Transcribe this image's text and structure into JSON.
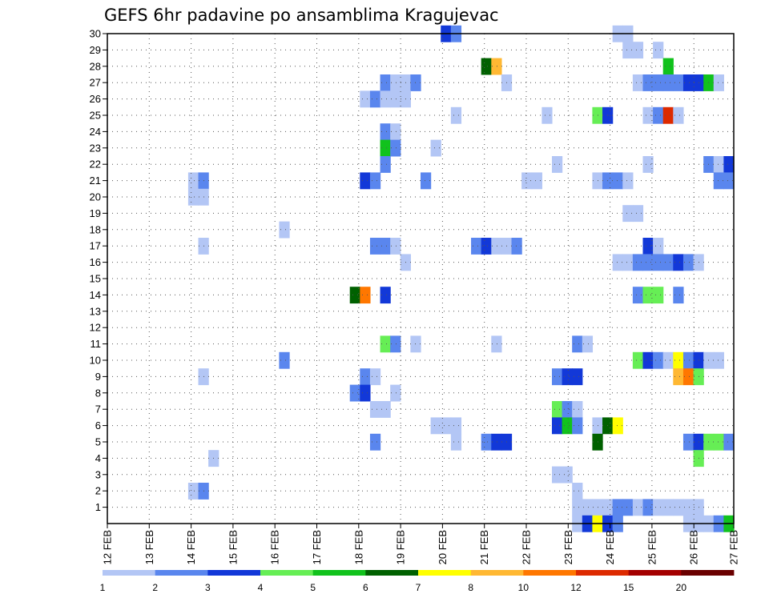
{
  "chart_data": {
    "type": "heatmap",
    "title": "GEFS 6hr padavine po ansamblima Kragujevac",
    "xlabel": "",
    "ylabel": "",
    "x_start_day": 12,
    "steps_per_day": 4,
    "x_steps": 62,
    "x_tick_labels": [
      "12 FEB",
      "13 FEB",
      "14 FEB",
      "15 FEB",
      "16 FEB",
      "17 FEB",
      "18 FEB",
      "19 FEB",
      "20 FEB",
      "21 FEB",
      "22 FEB",
      "23 FEB",
      "24 FEB",
      "25 FEB",
      "26 FEB",
      "27 FEB"
    ],
    "y_tick_labels": [
      "1",
      "2",
      "3",
      "4",
      "5",
      "6",
      "7",
      "8",
      "9",
      "10",
      "11",
      "12",
      "13",
      "14",
      "15",
      "16",
      "17",
      "18",
      "19",
      "20",
      "21",
      "22",
      "23",
      "24",
      "25",
      "26",
      "27",
      "28",
      "29",
      "30"
    ],
    "ylim": [
      0,
      30
    ],
    "grid": true,
    "legend": {
      "position": "bottom",
      "labels": [
        "1",
        "2",
        "3",
        "4",
        "5",
        "6",
        "7",
        "8",
        "10",
        "12",
        "15",
        "20"
      ],
      "colors": [
        "#b3c6f5",
        "#5a86ee",
        "#1238d8",
        "#66ee55",
        "#11c21c",
        "#006100",
        "#ffff00",
        "#ffb833",
        "#ff7700",
        "#dd2a00",
        "#a40000",
        "#6a0000"
      ]
    },
    "cell_colors": {
      "a": "#b3c6f5",
      "b": "#5a86ee",
      "c": "#1238d8",
      "d": "#66ee55",
      "e": "#11c21c",
      "f": "#006100",
      "g": "#ffff00",
      "h": "#ffb833",
      "i": "#ff7700",
      "j": "#dd2a00"
    },
    "cell_values": {
      "a": 1.5,
      "b": 2.5,
      "c": 3.5,
      "d": 4.5,
      "e": 5.5,
      "f": 6.5,
      "g": 7.5,
      "h": 9,
      "i": 11,
      "j": 13.5
    },
    "members": [
      {
        "m": 30,
        "cells": [
          [
            33,
            "c"
          ],
          [
            34,
            "b"
          ],
          [
            50,
            "a"
          ],
          [
            51,
            "a"
          ]
        ]
      },
      {
        "m": 29,
        "cells": [
          [
            51,
            "a"
          ],
          [
            52,
            "a"
          ],
          [
            54,
            "a"
          ]
        ]
      },
      {
        "m": 28,
        "cells": [
          [
            37,
            "f"
          ],
          [
            38,
            "h"
          ],
          [
            55,
            "e"
          ]
        ]
      },
      {
        "m": 27,
        "cells": [
          [
            27,
            "b"
          ],
          [
            28,
            "a"
          ],
          [
            29,
            "a"
          ],
          [
            30,
            "b"
          ],
          [
            39,
            "a"
          ],
          [
            52,
            "a"
          ],
          [
            53,
            "b"
          ],
          [
            54,
            "b"
          ],
          [
            55,
            "b"
          ],
          [
            56,
            "b"
          ],
          [
            57,
            "c"
          ],
          [
            58,
            "c"
          ],
          [
            59,
            "e"
          ],
          [
            60,
            "a"
          ]
        ]
      },
      {
        "m": 26,
        "cells": [
          [
            25,
            "a"
          ],
          [
            26,
            "b"
          ],
          [
            27,
            "a"
          ],
          [
            28,
            "a"
          ],
          [
            29,
            "a"
          ]
        ]
      },
      {
        "m": 25,
        "cells": [
          [
            34,
            "a"
          ],
          [
            43,
            "a"
          ],
          [
            48,
            "d"
          ],
          [
            49,
            "c"
          ],
          [
            53,
            "a"
          ],
          [
            54,
            "b"
          ],
          [
            55,
            "j"
          ],
          [
            56,
            "a"
          ]
        ]
      },
      {
        "m": 24,
        "cells": [
          [
            27,
            "b"
          ],
          [
            28,
            "a"
          ]
        ]
      },
      {
        "m": 23,
        "cells": [
          [
            27,
            "e"
          ],
          [
            28,
            "b"
          ],
          [
            32,
            "a"
          ]
        ]
      },
      {
        "m": 22,
        "cells": [
          [
            27,
            "b"
          ],
          [
            44,
            "a"
          ],
          [
            53,
            "a"
          ],
          [
            59,
            "b"
          ],
          [
            60,
            "a"
          ],
          [
            61,
            "c"
          ]
        ]
      },
      {
        "m": 21,
        "cells": [
          [
            8,
            "a"
          ],
          [
            9,
            "b"
          ],
          [
            25,
            "c"
          ],
          [
            26,
            "b"
          ],
          [
            31,
            "b"
          ],
          [
            41,
            "a"
          ],
          [
            42,
            "a"
          ],
          [
            48,
            "a"
          ],
          [
            49,
            "b"
          ],
          [
            50,
            "b"
          ],
          [
            51,
            "a"
          ],
          [
            60,
            "b"
          ],
          [
            61,
            "b"
          ]
        ]
      },
      {
        "m": 20,
        "cells": [
          [
            8,
            "a"
          ],
          [
            9,
            "a"
          ]
        ]
      },
      {
        "m": 19,
        "cells": [
          [
            51,
            "a"
          ],
          [
            52,
            "a"
          ]
        ]
      },
      {
        "m": 18,
        "cells": [
          [
            17,
            "a"
          ]
        ]
      },
      {
        "m": 17,
        "cells": [
          [
            9,
            "a"
          ],
          [
            26,
            "b"
          ],
          [
            27,
            "b"
          ],
          [
            28,
            "a"
          ],
          [
            36,
            "b"
          ],
          [
            37,
            "c"
          ],
          [
            38,
            "a"
          ],
          [
            39,
            "a"
          ],
          [
            40,
            "b"
          ],
          [
            53,
            "c"
          ],
          [
            54,
            "a"
          ]
        ]
      },
      {
        "m": 16,
        "cells": [
          [
            29,
            "a"
          ],
          [
            50,
            "a"
          ],
          [
            51,
            "a"
          ],
          [
            52,
            "b"
          ],
          [
            53,
            "b"
          ],
          [
            54,
            "b"
          ],
          [
            55,
            "b"
          ],
          [
            56,
            "c"
          ],
          [
            57,
            "b"
          ],
          [
            58,
            "a"
          ]
        ]
      },
      {
        "m": 15,
        "cells": []
      },
      {
        "m": 14,
        "cells": [
          [
            24,
            "f"
          ],
          [
            25,
            "i"
          ],
          [
            27,
            "c"
          ],
          [
            52,
            "b"
          ],
          [
            53,
            "d"
          ],
          [
            54,
            "d"
          ],
          [
            56,
            "b"
          ]
        ]
      },
      {
        "m": 13,
        "cells": []
      },
      {
        "m": 12,
        "cells": []
      },
      {
        "m": 11,
        "cells": [
          [
            27,
            "d"
          ],
          [
            28,
            "b"
          ],
          [
            30,
            "a"
          ],
          [
            38,
            "a"
          ],
          [
            46,
            "b"
          ],
          [
            47,
            "a"
          ]
        ]
      },
      {
        "m": 10,
        "cells": [
          [
            17,
            "b"
          ],
          [
            52,
            "d"
          ],
          [
            53,
            "c"
          ],
          [
            54,
            "b"
          ],
          [
            55,
            "a"
          ],
          [
            56,
            "g"
          ],
          [
            57,
            "b"
          ],
          [
            58,
            "c"
          ],
          [
            59,
            "a"
          ],
          [
            60,
            "a"
          ]
        ]
      },
      {
        "m": 9,
        "cells": [
          [
            9,
            "a"
          ],
          [
            25,
            "b"
          ],
          [
            26,
            "a"
          ],
          [
            44,
            "b"
          ],
          [
            45,
            "c"
          ],
          [
            46,
            "c"
          ],
          [
            56,
            "h"
          ],
          [
            57,
            "i"
          ],
          [
            58,
            "d"
          ]
        ]
      },
      {
        "m": 8,
        "cells": [
          [
            24,
            "b"
          ],
          [
            25,
            "c"
          ],
          [
            28,
            "a"
          ]
        ]
      },
      {
        "m": 7,
        "cells": [
          [
            26,
            "a"
          ],
          [
            27,
            "a"
          ],
          [
            44,
            "d"
          ],
          [
            45,
            "b"
          ],
          [
            46,
            "a"
          ]
        ]
      },
      {
        "m": 6,
        "cells": [
          [
            32,
            "a"
          ],
          [
            33,
            "a"
          ],
          [
            34,
            "a"
          ],
          [
            44,
            "c"
          ],
          [
            45,
            "e"
          ],
          [
            46,
            "b"
          ],
          [
            48,
            "a"
          ],
          [
            49,
            "f"
          ],
          [
            50,
            "g"
          ]
        ]
      },
      {
        "m": 5,
        "cells": [
          [
            26,
            "b"
          ],
          [
            34,
            "a"
          ],
          [
            37,
            "b"
          ],
          [
            38,
            "c"
          ],
          [
            39,
            "c"
          ],
          [
            48,
            "f"
          ],
          [
            57,
            "b"
          ],
          [
            58,
            "c"
          ],
          [
            59,
            "d"
          ],
          [
            60,
            "d"
          ],
          [
            61,
            "b"
          ]
        ]
      },
      {
        "m": 4,
        "cells": [
          [
            10,
            "a"
          ],
          [
            58,
            "d"
          ]
        ]
      },
      {
        "m": 3,
        "cells": [
          [
            44,
            "a"
          ],
          [
            45,
            "a"
          ]
        ]
      },
      {
        "m": 2,
        "cells": [
          [
            8,
            "a"
          ],
          [
            9,
            "b"
          ],
          [
            46,
            "a"
          ]
        ]
      },
      {
        "m": 1,
        "cells": [
          [
            46,
            "a"
          ],
          [
            47,
            "a"
          ],
          [
            48,
            "a"
          ],
          [
            49,
            "a"
          ],
          [
            50,
            "b"
          ],
          [
            51,
            "b"
          ],
          [
            52,
            "a"
          ],
          [
            53,
            "b"
          ],
          [
            54,
            "a"
          ],
          [
            55,
            "a"
          ],
          [
            56,
            "a"
          ],
          [
            57,
            "a"
          ],
          [
            58,
            "a"
          ]
        ]
      },
      {
        "m": 0,
        "cells": [
          [
            46,
            "a"
          ],
          [
            47,
            "c"
          ],
          [
            48,
            "g"
          ],
          [
            49,
            "c"
          ],
          [
            50,
            "b"
          ],
          [
            57,
            "a"
          ],
          [
            58,
            "a"
          ],
          [
            59,
            "a"
          ],
          [
            60,
            "b"
          ],
          [
            61,
            "e"
          ]
        ]
      }
    ]
  }
}
